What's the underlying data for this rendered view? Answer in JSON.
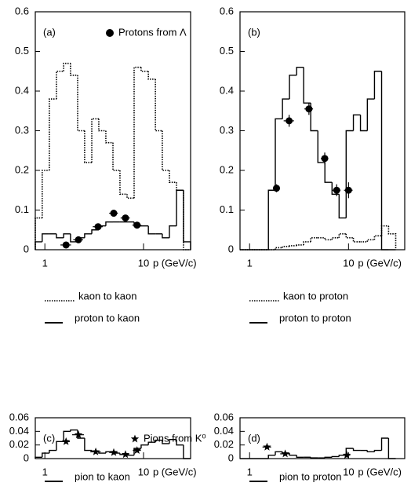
{
  "chart_data": [
    {
      "type": "histogram",
      "panel_label": "(a)",
      "xscale": "log",
      "xlabel": "p (GeV/c)",
      "xlim": [
        0.8,
        30
      ],
      "xticks": [
        1,
        10
      ],
      "ylim": [
        0,
        0.6
      ],
      "yticks": [
        0,
        0.1,
        0.2,
        0.3,
        0.4,
        0.5,
        0.6
      ],
      "bins": [
        0.8,
        0.94,
        1.11,
        1.31,
        1.55,
        1.82,
        2.15,
        2.53,
        2.99,
        3.52,
        4.15,
        4.9,
        5.77,
        6.81,
        8.03,
        9.46,
        11.2,
        13.2,
        15.5,
        18.3,
        21.6,
        25.4,
        30
      ],
      "series": [
        {
          "name": "kaon to kaon",
          "style": "dotted",
          "color": "#000000",
          "values": [
            0.08,
            0.2,
            0.38,
            0.45,
            0.47,
            0.44,
            0.3,
            0.22,
            0.33,
            0.3,
            0.27,
            0.2,
            0.14,
            0.13,
            0.46,
            0.45,
            0.43,
            0.3,
            0.2,
            0.17,
            0.15,
            0.0
          ]
        },
        {
          "name": "proton to kaon",
          "style": "solid",
          "color": "#000000",
          "values": [
            0.02,
            0.04,
            0.04,
            0.03,
            0.04,
            0.02,
            0.03,
            0.04,
            0.05,
            0.06,
            0.07,
            0.07,
            0.07,
            0.07,
            0.06,
            0.06,
            0.04,
            0.04,
            0.03,
            0.06,
            0.15,
            0.02
          ]
        }
      ],
      "points": {
        "name": "Protons from Λ",
        "marker": "circle",
        "color": "#000000",
        "x": [
          1.64,
          2.19,
          3.46,
          4.99,
          6.56,
          8.6
        ],
        "y": [
          0.012,
          0.025,
          0.058,
          0.092,
          0.08,
          0.062
        ],
        "xerr": [
          0.2,
          0.25,
          0.4,
          0.5,
          0.7,
          0.9
        ],
        "yerr": [
          0.005,
          0.006,
          0.008,
          0.008,
          0.008,
          0.008
        ]
      }
    },
    {
      "type": "histogram",
      "panel_label": "(b)",
      "xscale": "log",
      "xlabel": "p (GeV/c)",
      "xlim": [
        0.8,
        37
      ],
      "xticks": [
        1,
        10
      ],
      "ylim": [
        0,
        0.6
      ],
      "yticks": [
        0,
        0.1,
        0.2,
        0.3,
        0.4,
        0.5,
        0.6
      ],
      "bins": [
        0.8,
        0.94,
        1.11,
        1.31,
        1.55,
        1.82,
        2.15,
        2.53,
        2.99,
        3.52,
        4.15,
        4.9,
        5.77,
        6.81,
        8.03,
        9.46,
        11.2,
        13.2,
        15.5,
        18.3,
        21.6,
        25.4,
        30
      ],
      "series": [
        {
          "name": "kaon to proton",
          "style": "dotted",
          "color": "#000000",
          "values": [
            0,
            0,
            0,
            0,
            0,
            0.005,
            0.008,
            0.01,
            0.012,
            0.02,
            0.03,
            0.03,
            0.025,
            0.03,
            0.04,
            0.03,
            0.02,
            0.02,
            0.025,
            0.035,
            0.06,
            0.04
          ]
        },
        {
          "name": "proton to proton",
          "style": "solid",
          "color": "#000000",
          "values": [
            0,
            0,
            0,
            0,
            0.15,
            0.33,
            0.38,
            0.44,
            0.46,
            0.37,
            0.3,
            0.22,
            0.17,
            0.14,
            0.08,
            0.3,
            0.34,
            0.3,
            0.38,
            0.45,
            0,
            0
          ]
        }
      ],
      "points": {
        "marker": "circle",
        "color": "#000000",
        "x": [
          1.87,
          2.51,
          3.98,
          5.75,
          7.59,
          10
        ],
        "y": [
          0.155,
          0.325,
          0.355,
          0.23,
          0.15,
          0.15
        ],
        "xerr": [
          0.15,
          0.3,
          0.4,
          0.5,
          0.7,
          1.0
        ],
        "yerr": [
          0.01,
          0.015,
          0.015,
          0.015,
          0.015,
          0.02
        ]
      }
    },
    {
      "type": "histogram",
      "panel_label": "(c)",
      "xscale": "log",
      "xlabel": "p (GeV/c)",
      "xlim": [
        0.8,
        30
      ],
      "xticks": [
        1,
        10
      ],
      "ylim": [
        0,
        0.06
      ],
      "yticks": [
        0,
        0.02,
        0.04,
        0.06
      ],
      "bins": [
        0.8,
        0.94,
        1.11,
        1.31,
        1.55,
        1.82,
        2.15,
        2.53,
        2.99,
        3.52,
        4.15,
        4.9,
        5.77,
        6.81,
        8.03,
        9.46,
        11.2,
        13.2,
        15.5,
        18.3,
        21.6,
        25.4,
        30
      ],
      "series": [
        {
          "name": "pion to kaon",
          "style": "solid",
          "color": "#000000",
          "values": [
            0.002,
            0.008,
            0.012,
            0.025,
            0.04,
            0.042,
            0.03,
            0.012,
            0.01,
            0.008,
            0.01,
            0.008,
            0.006,
            0.005,
            0.015,
            0.02,
            0.024,
            0.027,
            0.022,
            0.028,
            0.02,
            0
          ]
        }
      ],
      "points": {
        "name": "Pions from K⁰",
        "marker": "star",
        "color": "#000000",
        "x": [
          1.64,
          2.19,
          3.28,
          4.99,
          6.56,
          8.6
        ],
        "y": [
          0.025,
          0.035,
          0.01,
          0.009,
          0.006,
          0.012
        ],
        "xerr": [
          0.15,
          0.3,
          0.4,
          0.5,
          0.6,
          0.8
        ],
        "yerr": [
          0.003,
          0.004,
          0.002,
          0.002,
          0.002,
          0.003
        ]
      }
    },
    {
      "type": "histogram",
      "panel_label": "(d)",
      "xscale": "log",
      "xlabel": "p (GeV/c)",
      "xlim": [
        0.8,
        37
      ],
      "xticks": [
        1,
        10
      ],
      "ylim": [
        0,
        0.06
      ],
      "yticks": [
        0,
        0.02,
        0.04,
        0.06
      ],
      "bins": [
        0.8,
        0.94,
        1.11,
        1.31,
        1.55,
        1.82,
        2.15,
        2.53,
        2.99,
        3.52,
        4.15,
        4.9,
        5.77,
        6.81,
        8.03,
        9.46,
        11.2,
        13.2,
        15.5,
        18.3,
        21.6,
        25.4,
        30
      ],
      "series": [
        {
          "name": "pion to proton",
          "style": "solid",
          "color": "#000000",
          "values": [
            0,
            0,
            0,
            0,
            0.005,
            0.01,
            0.008,
            0.005,
            0.002,
            0.002,
            0.001,
            0.001,
            0.002,
            0.003,
            0.005,
            0.015,
            0.012,
            0.012,
            0.01,
            0.012,
            0.03,
            0
          ]
        }
      ],
      "points": {
        "marker": "star",
        "color": "#000000",
        "x": [
          1.5,
          2.29,
          9.6
        ],
        "y": [
          0.017,
          0.007,
          0.005
        ],
        "xerr": [
          0.15,
          0.25,
          0.8
        ],
        "yerr": [
          0.002,
          0.002,
          0.003
        ]
      }
    }
  ]
}
